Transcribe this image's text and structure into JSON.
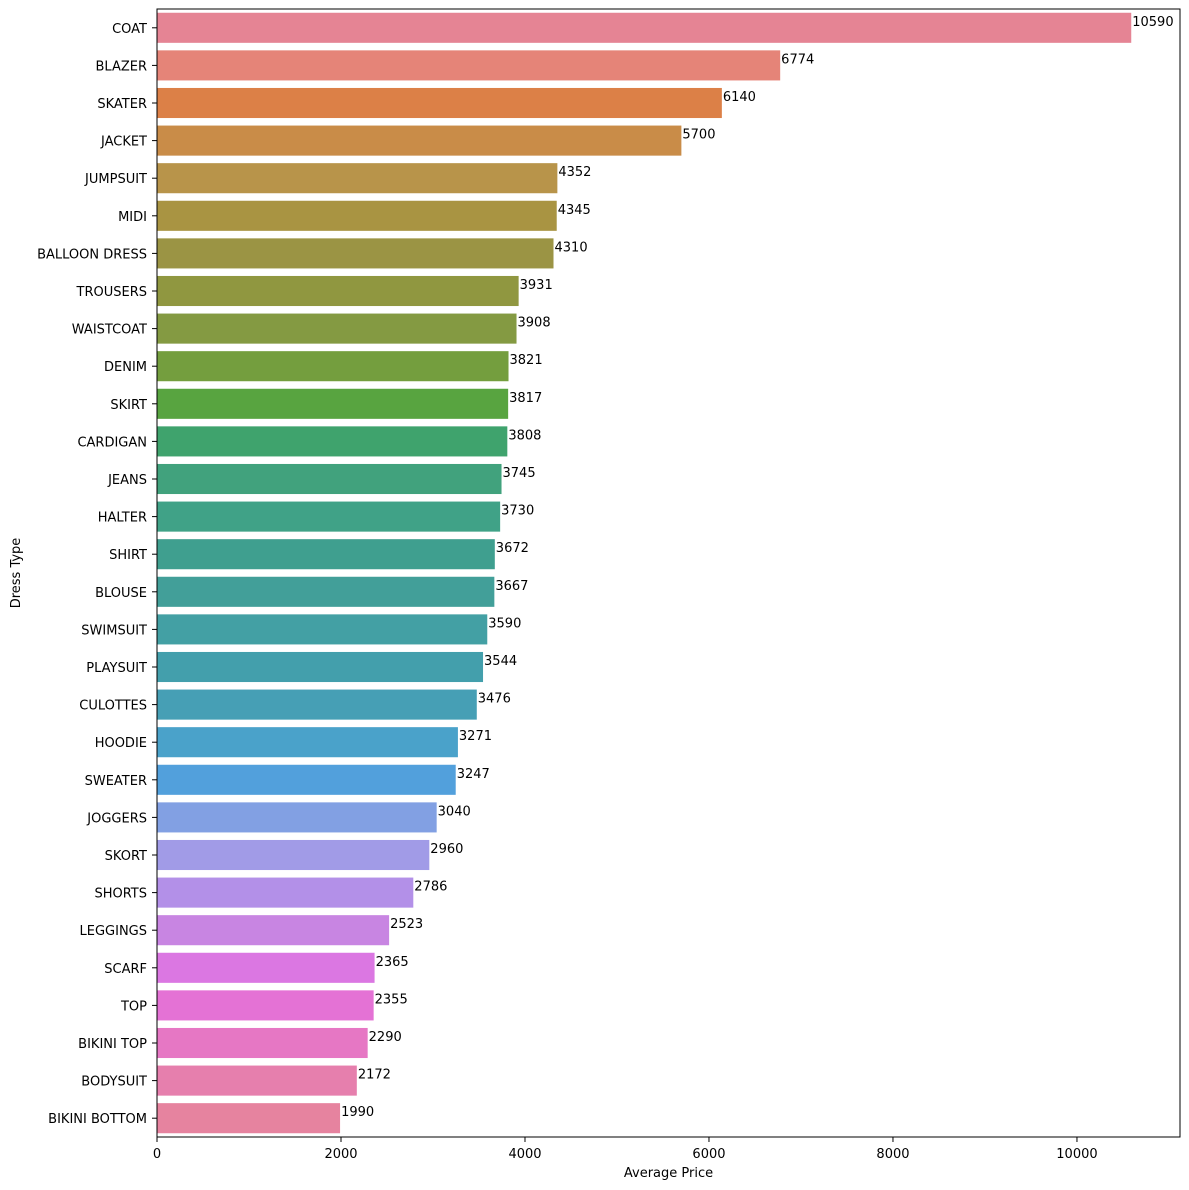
{
  "chart_data": {
    "type": "bar",
    "orientation": "horizontal",
    "title": "",
    "xlabel": "Average Price",
    "ylabel": "Dress Type",
    "xlim": [
      0,
      11120
    ],
    "xticks": [
      0,
      2000,
      4000,
      6000,
      8000,
      10000
    ],
    "grid": false,
    "categories": [
      "COAT",
      "BLAZER",
      "SKATER",
      "JACKET",
      "JUMPSUIT",
      "MIDI",
      "BALLOON DRESS",
      "TROUSERS",
      "WAISTCOAT",
      "DENIM",
      "SKIRT",
      "CARDIGAN",
      "JEANS",
      "HALTER",
      "SHIRT",
      "BLOUSE",
      "SWIMSUIT",
      "PLAYSUIT",
      "CULOTTES",
      "HOODIE",
      "SWEATER",
      "JOGGERS",
      "SKORT",
      "SHORTS",
      "LEGGINGS",
      "SCARF",
      "TOP",
      "BIKINI TOP",
      "BODYSUIT",
      "BIKINI BOTTOM"
    ],
    "values": [
      10590,
      6774,
      6140,
      5700,
      4352,
      4345,
      4310,
      3931,
      3908,
      3821,
      3817,
      3808,
      3745,
      3730,
      3672,
      3667,
      3590,
      3544,
      3476,
      3271,
      3247,
      3040,
      2960,
      2786,
      2523,
      2365,
      2355,
      2290,
      2172,
      1990
    ],
    "colors": [
      "#e58494",
      "#e58478",
      "#dc8047",
      "#c98c48",
      "#b8944a",
      "#a99442",
      "#9b9444",
      "#909740",
      "#849a42",
      "#749e3e",
      "#58a440",
      "#3fa36d",
      "#41a27d",
      "#40a287",
      "#3f9f8f",
      "#429f99",
      "#43a0a4",
      "#439fac",
      "#469fb5",
      "#4aa2ca",
      "#52a0dc",
      "#82a0e3",
      "#a19be7",
      "#b390e8",
      "#c885e2",
      "#db77e2",
      "#e472d5",
      "#e677c4",
      "#e67fad",
      "#e6839f"
    ]
  }
}
